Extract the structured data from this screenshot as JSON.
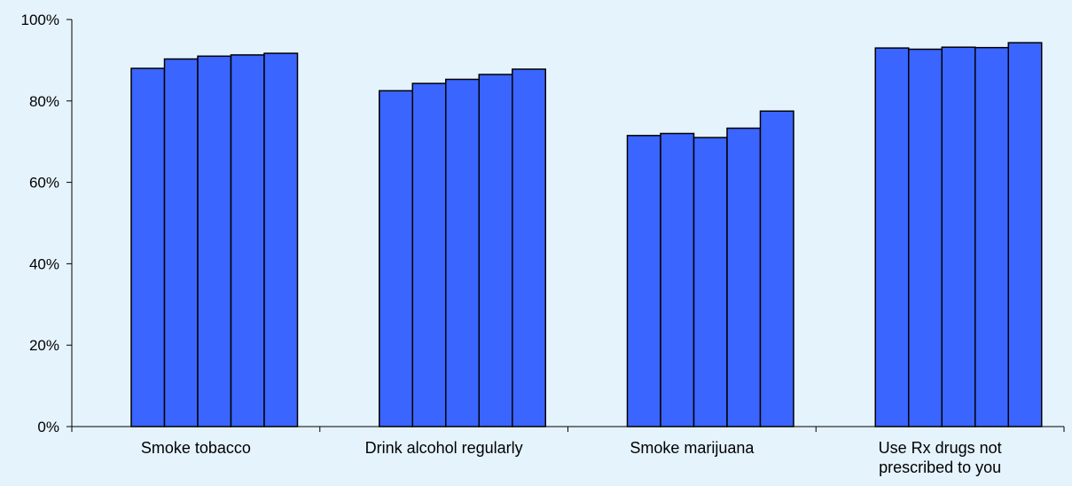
{
  "chart_data": {
    "type": "bar",
    "title": "",
    "xlabel": "",
    "ylabel": "",
    "ylim": [
      0,
      100
    ],
    "yticks": [
      0,
      20,
      40,
      60,
      80,
      100
    ],
    "ytick_labels": [
      "0%",
      "20%",
      "40%",
      "60%",
      "80%",
      "100%"
    ],
    "categories": [
      [
        "Smoke tobacco"
      ],
      [
        "Drink alcohol regularly"
      ],
      [
        "Smoke marijuana"
      ],
      [
        "Use Rx drugs not",
        "prescribed to you"
      ]
    ],
    "series": [
      {
        "values": [
          88.0,
          82.5,
          71.5,
          93.0
        ]
      },
      {
        "values": [
          90.3,
          84.3,
          72.0,
          92.7
        ]
      },
      {
        "values": [
          91.0,
          85.3,
          71.0,
          93.2
        ]
      },
      {
        "values": [
          91.3,
          86.5,
          73.3,
          93.1
        ]
      },
      {
        "values": [
          91.7,
          87.8,
          77.5,
          94.3
        ]
      }
    ],
    "bar_color": "#3a65ff",
    "bar_edge_color": "#000000",
    "background_color": "#e5f3fd",
    "grid": false,
    "legend": "none"
  }
}
